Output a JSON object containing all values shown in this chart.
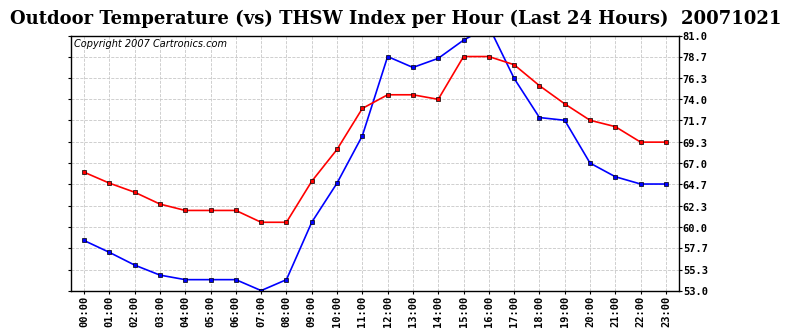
{
  "title": "Outdoor Temperature (vs) THSW Index per Hour (Last 24 Hours)  20071021",
  "copyright": "Copyright 2007 Cartronics.com",
  "hours": [
    0,
    1,
    2,
    3,
    4,
    5,
    6,
    7,
    8,
    9,
    10,
    11,
    12,
    13,
    14,
    15,
    16,
    17,
    18,
    19,
    20,
    21,
    22,
    23
  ],
  "temp_blue": [
    58.5,
    57.2,
    55.8,
    54.7,
    54.2,
    54.2,
    54.2,
    53.0,
    54.2,
    60.5,
    64.8,
    70.0,
    78.7,
    77.5,
    78.5,
    80.5,
    82.0,
    76.3,
    72.0,
    71.7,
    67.0,
    65.5,
    64.7,
    64.7
  ],
  "temp_red": [
    66.0,
    64.8,
    63.8,
    62.5,
    61.8,
    61.8,
    61.8,
    60.5,
    60.5,
    65.0,
    68.5,
    73.0,
    74.5,
    74.5,
    74.0,
    78.7,
    78.7,
    77.8,
    75.5,
    73.5,
    71.7,
    71.0,
    69.3,
    69.3
  ],
  "ylim": [
    53.0,
    81.0
  ],
  "yticks": [
    53.0,
    55.3,
    57.7,
    60.0,
    62.3,
    64.7,
    67.0,
    69.3,
    71.7,
    74.0,
    76.3,
    78.7,
    81.0
  ],
  "blue_color": "#0000ff",
  "red_color": "#ff0000",
  "grid_color": "#c8c8c8",
  "bg_color": "#ffffff",
  "title_fontsize": 13,
  "tick_fontsize": 7.5,
  "copyright_fontsize": 7
}
